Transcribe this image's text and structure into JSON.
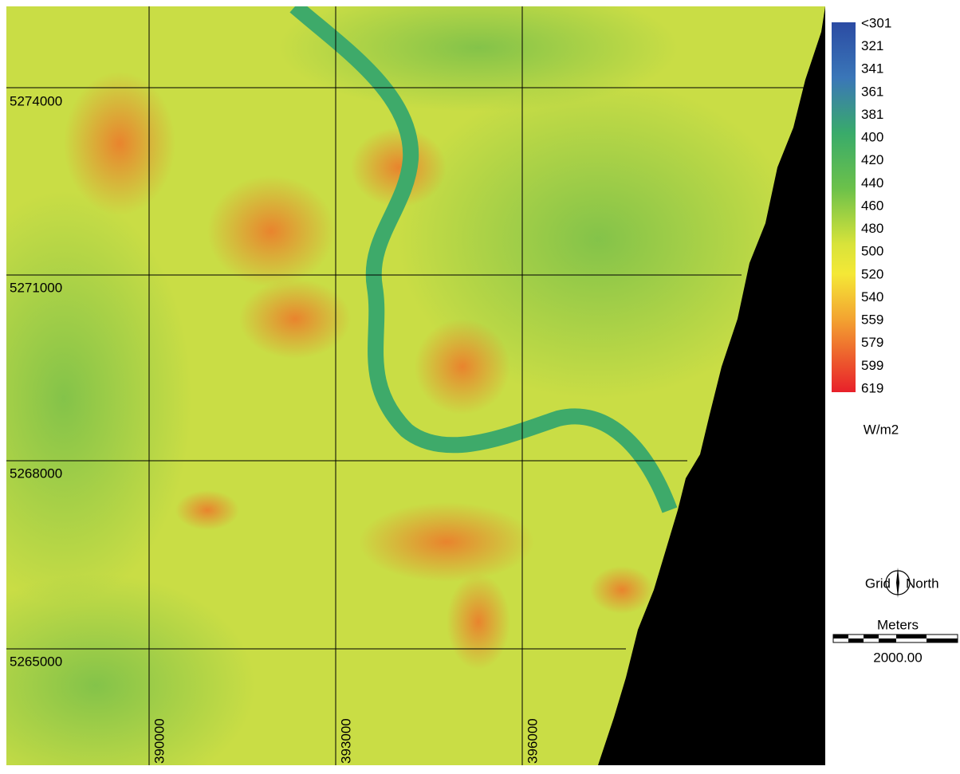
{
  "map": {
    "grid_y_labels": [
      "5274000",
      "5271000",
      "5268000",
      "5265000"
    ],
    "grid_x_labels": [
      "390000",
      "393000",
      "396000"
    ],
    "legend": {
      "labels": [
        "<301",
        "321",
        "341",
        "361",
        "381",
        "400",
        "420",
        "440",
        "460",
        "480",
        "500",
        "520",
        "540",
        "559",
        "579",
        "599",
        "619"
      ],
      "unit": "W/m2"
    },
    "north": {
      "left": "Grid",
      "right": "North"
    },
    "scale": {
      "title": "Meters",
      "label": "2000.00"
    }
  }
}
